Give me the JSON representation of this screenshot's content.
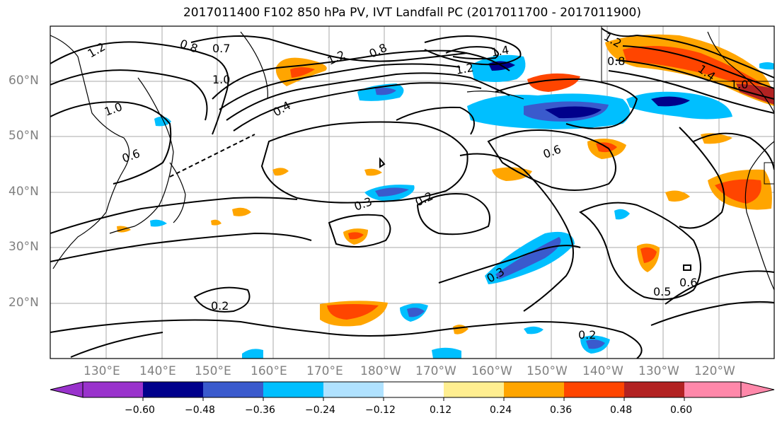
{
  "title": "2017011400 F102 850 hPa PV, IVT Landfall PC (2017011700 - 2017011900)",
  "map": {
    "lat_labels": [
      "60°N",
      "50°N",
      "40°N",
      "30°N",
      "20°N"
    ],
    "lon_labels": [
      "130°E",
      "140°E",
      "150°E",
      "160°E",
      "170°E",
      "180°W",
      "170°W",
      "160°W",
      "150°W",
      "140°W",
      "130°W",
      "120°W"
    ],
    "contour_labels": [
      "1.2",
      "0.8",
      "0.7",
      "1.2",
      "0.8",
      "1.4",
      "1.2",
      "1.0",
      "0.4",
      "1.0",
      "0.6",
      "0.6",
      "0.3",
      "0.2",
      "0.3",
      "0.2",
      "0.5",
      "0.6",
      "0.2",
      "1.2",
      "1.4",
      "1.0",
      "0.8"
    ]
  },
  "colorbar": {
    "tick_labels": [
      "−0.60",
      "−0.48",
      "−0.36",
      "−0.24",
      "−0.12",
      "0.12",
      "0.24",
      "0.36",
      "0.48",
      "0.60"
    ],
    "colors": [
      "#9932cc",
      "#00008b",
      "#3a5acd",
      "#00bfff",
      "#b0e2ff",
      "#ffffff",
      "#ffee90",
      "#ffa500",
      "#ff4500",
      "#b22222",
      "#ff88aa"
    ]
  }
}
